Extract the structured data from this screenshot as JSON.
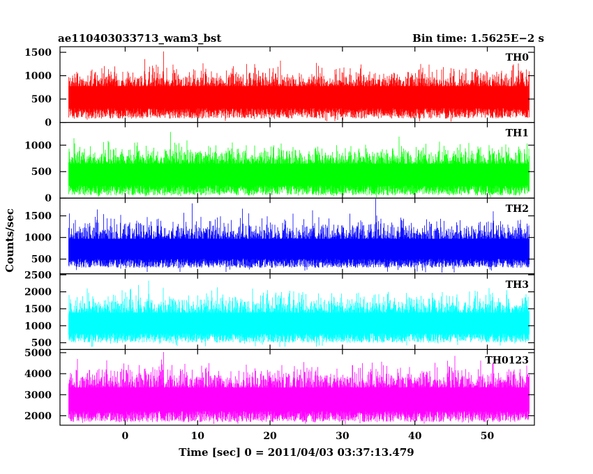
{
  "header": {
    "title": "ae110403033713_wam3_bst",
    "bin_time": "Bin time: 1.5625E−2 s"
  },
  "chart_data": {
    "type": "line",
    "title": "ae110403033713_wam3_bst",
    "xlabel": "Time [sec] 0 = 2011/04/03 03:37:13.479",
    "ylabel": "Counts/sec",
    "xlim": [
      -9,
      56.5
    ],
    "x_range_data": [
      -7.8,
      55.8
    ],
    "x_ticks": [
      0,
      10,
      20,
      30,
      40,
      50
    ],
    "grid": false,
    "legend": "none",
    "panels": [
      {
        "name": "TH0",
        "color": "#ff0000",
        "ylim": [
          0,
          1620
        ],
        "y_ticks": [
          0,
          500,
          1000,
          1500
        ],
        "baseline": 80,
        "mean": 720,
        "spread": 230
      },
      {
        "name": "TH1",
        "color": "#00ff00",
        "ylim": [
          0,
          1430
        ],
        "y_ticks": [
          0,
          500,
          1000
        ],
        "baseline": 50,
        "mean": 600,
        "spread": 210
      },
      {
        "name": "TH2",
        "color": "#0000ff",
        "ylim": [
          160,
          1910
        ],
        "y_ticks": [
          500,
          1000,
          1500
        ],
        "baseline": 300,
        "mean": 900,
        "spread": 280
      },
      {
        "name": "TH3",
        "color": "#00ffff",
        "ylim": [
          300,
          2530
        ],
        "y_ticks": [
          500,
          1000,
          1500,
          2000,
          2500
        ],
        "baseline": 500,
        "mean": 1300,
        "spread": 350
      },
      {
        "name": "TH0123",
        "color": "#ff00ff",
        "ylim": [
          1550,
          5150
        ],
        "y_ticks": [
          2000,
          3000,
          4000,
          5000
        ],
        "baseline": 1700,
        "mean": 3200,
        "spread": 600
      }
    ]
  }
}
